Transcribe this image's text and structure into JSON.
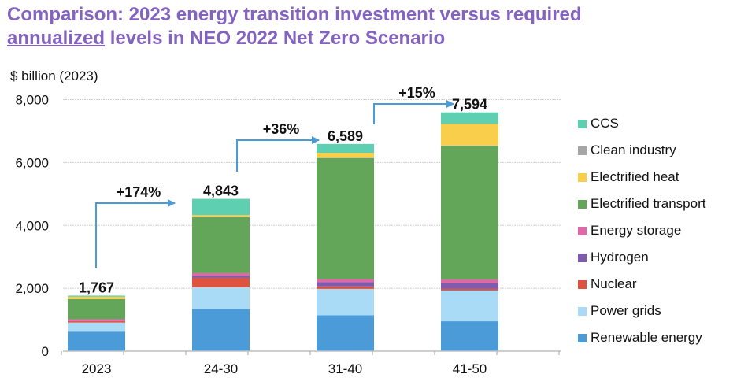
{
  "title": {
    "line1": "Comparison: 2023 energy transition investment versus required",
    "line2_underlined": "annualized",
    "line2_rest": " levels in NEO 2022 Net Zero Scenario"
  },
  "chart_data": {
    "type": "bar",
    "stacked": true,
    "title": "Comparison: 2023 energy transition investment versus required annualized levels in NEO 2022 Net Zero Scenario",
    "xlabel": "",
    "ylabel": "$ billion (2023)",
    "ylim": [
      0,
      8000
    ],
    "yticks": [
      0,
      2000,
      4000,
      6000,
      8000
    ],
    "ytick_labels": [
      "0",
      "2,000",
      "4,000",
      "6,000",
      "8,000"
    ],
    "grid": true,
    "legend_position": "right",
    "categories": [
      "2023",
      "24-30",
      "31-40",
      "41-50"
    ],
    "totals": [
      1767,
      4843,
      6589,
      7594
    ],
    "total_labels": [
      "1,767",
      "4,843",
      "6,589",
      "7,594"
    ],
    "growth_annotations": [
      {
        "from": "2023",
        "to": "24-30",
        "label": "+174%"
      },
      {
        "from": "24-30",
        "to": "31-40",
        "label": "+36%"
      },
      {
        "from": "31-40",
        "to": "41-50",
        "label": "+15%"
      }
    ],
    "series": [
      {
        "name": "Renewable energy",
        "color": "#4A9BD8",
        "values": [
          620,
          1340,
          1140,
          950
        ]
      },
      {
        "name": "Power grids",
        "color": "#A9DBF6",
        "values": [
          290,
          690,
          840,
          980
        ]
      },
      {
        "name": "Nuclear",
        "color": "#DE5240",
        "values": [
          40,
          300,
          80,
          50
        ]
      },
      {
        "name": "Hydrogen",
        "color": "#7F5BAE",
        "values": [
          5,
          70,
          130,
          180
        ]
      },
      {
        "name": "Energy storage",
        "color": "#DE68A8",
        "values": [
          60,
          80,
          100,
          120
        ]
      },
      {
        "name": "Electrified transport",
        "color": "#63A65A",
        "values": [
          640,
          1780,
          3850,
          4250
        ]
      },
      {
        "name": "Clean industry",
        "color": "#A6A6A6",
        "values": [
          2,
          5,
          10,
          10
        ]
      },
      {
        "name": "Electrified heat",
        "color": "#F9CE4A",
        "values": [
          75,
          60,
          160,
          690
        ]
      },
      {
        "name": "CCS",
        "color": "#5ECFB1",
        "values": [
          35,
          518,
          279,
          364
        ]
      }
    ]
  },
  "legend_order": [
    "CCS",
    "Clean industry",
    "Electrified heat",
    "Electrified transport",
    "Energy storage",
    "Hydrogen",
    "Nuclear",
    "Power grids",
    "Renewable energy"
  ],
  "colors": {
    "title": "#8463C0",
    "arrow": "#4A9BD8",
    "grid": "#D0D0D0",
    "axis": "#BFBFBF"
  }
}
